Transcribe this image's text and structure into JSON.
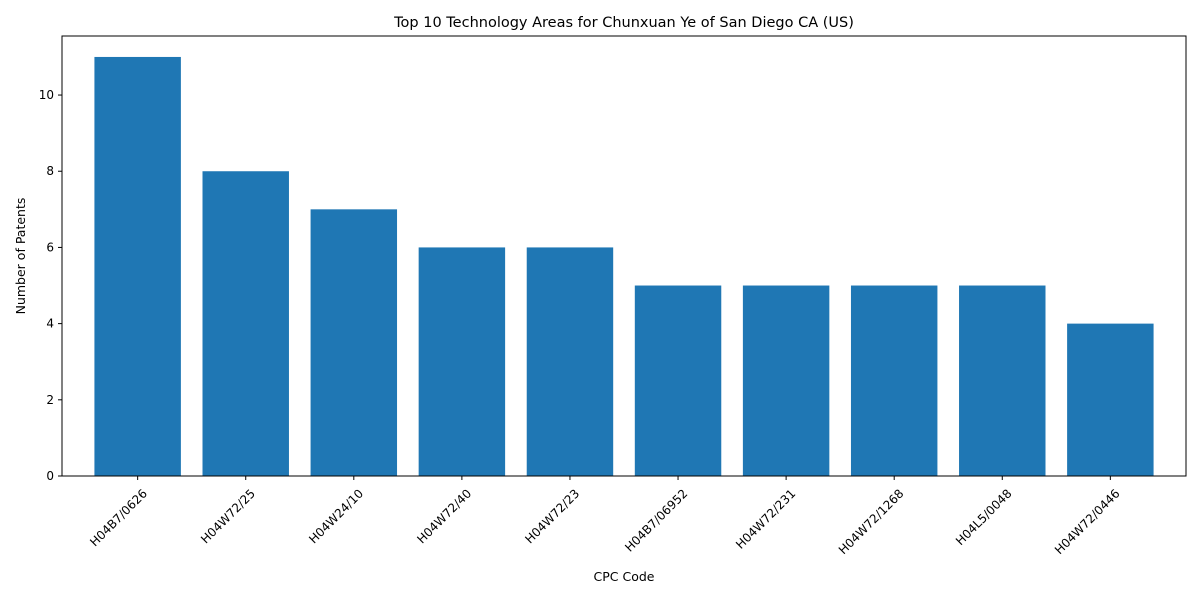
{
  "chart_data": {
    "type": "bar",
    "title": "Top 10 Technology Areas for Chunxuan Ye of San Diego CA (US)",
    "xlabel": "CPC Code",
    "ylabel": "Number of Patents",
    "categories": [
      "H04B7/0626",
      "H04W72/25",
      "H04W24/10",
      "H04W72/40",
      "H04W72/23",
      "H04B7/06952",
      "H04W72/231",
      "H04W72/1268",
      "H04L5/0048",
      "H04W72/0446"
    ],
    "values": [
      11,
      8,
      7,
      6,
      6,
      5,
      5,
      5,
      5,
      4
    ],
    "ylim": [
      0,
      11.55
    ],
    "yticks": [
      0,
      2,
      4,
      6,
      8,
      10
    ],
    "grid": false,
    "bar_color": "#1f77b4"
  }
}
